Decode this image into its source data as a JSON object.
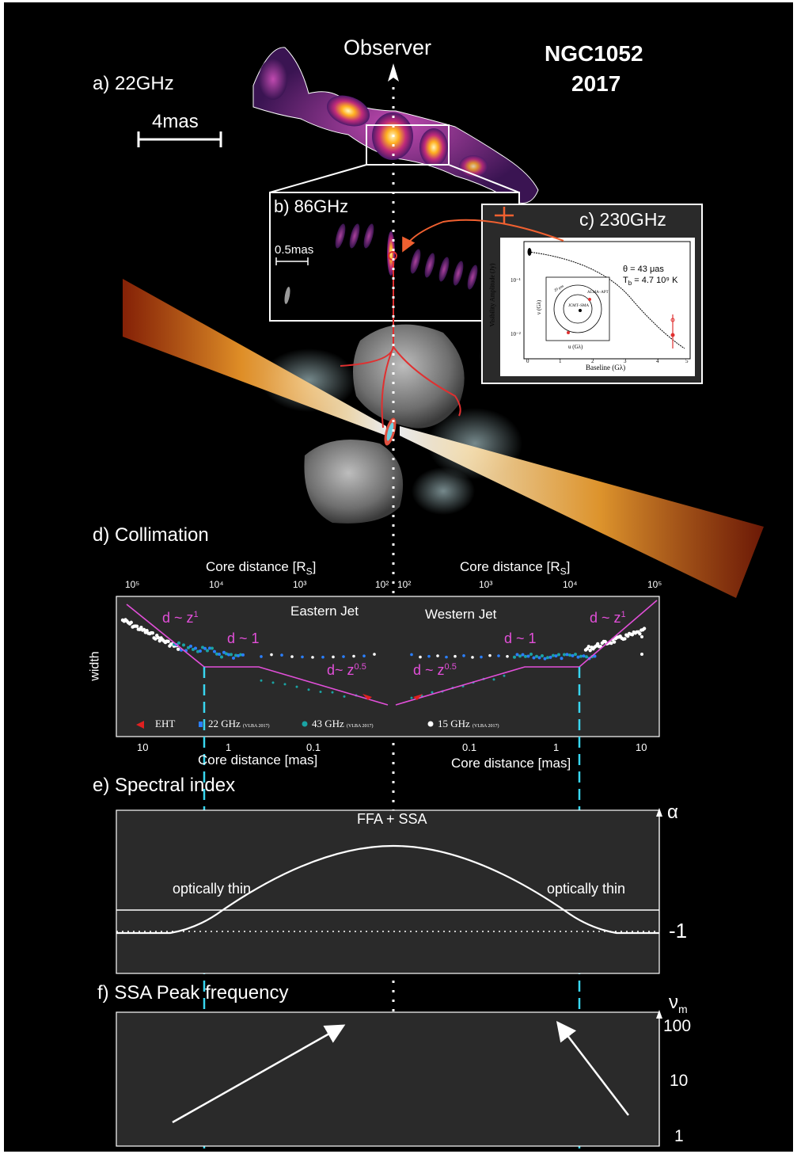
{
  "title": {
    "source": "NGC1052",
    "year": "2017"
  },
  "observer": "Observer",
  "panel_a": {
    "label": "a) 22GHz",
    "scale": "4mas"
  },
  "panel_b": {
    "label": "b) 86GHz",
    "scale": "0.5mas"
  },
  "panel_c": {
    "label": "c) 230GHz",
    "theta": "θ  = 43 μas",
    "tb": "T",
    "tb_sub": "b",
    "tb_val": " = 4.7 10⁹ K",
    "xlabel": "Baseline (Gλ)",
    "ylabel": "Visibility Amplitude (Jy)",
    "inset_x": "u (Gλ)",
    "inset_y": "v (Gλ)",
    "stations": [
      "ALMA–APT",
      "JCMT–SMA"
    ],
    "ring_label": "20 μas",
    "tick_y": [
      "10⁻¹",
      "10⁻²"
    ],
    "tick_x": [
      "0",
      "1",
      "2",
      "3",
      "4",
      "5"
    ]
  },
  "panel_d": {
    "label": "d) Collimation",
    "top_axis_left": "Core distance [R",
    "top_axis_right": "Core distance [R",
    "top_axis_sub": "S",
    "top_axis_close": "]",
    "top_ticks_left": [
      "10⁵",
      "10⁴",
      "10³",
      "10²"
    ],
    "top_ticks_right": [
      "10²",
      "10³",
      "10⁴",
      "10⁵"
    ],
    "bottom_axis_left": "Core distance [mas]",
    "bottom_axis_right": "Core distance [mas]",
    "bottom_ticks_left": [
      "10",
      "1",
      "0.1"
    ],
    "bottom_ticks_right": [
      "0.1",
      "1",
      "10"
    ],
    "ylabel": "width",
    "eastern": "Eastern Jet",
    "western": "Western Jet",
    "fits": {
      "outer": "d ~ z",
      "outer_exp": "1",
      "middle": "d ~ 1",
      "inner_left": "d~ z",
      "inner_right": "d ~ z",
      "inner_exp": "0.5"
    },
    "legend": [
      {
        "name": "EHT",
        "color": "#e02020"
      },
      {
        "name": "22 GHz",
        "note": "(VLBA 2017)",
        "color": "#2a7fff"
      },
      {
        "name": "43 GHz",
        "note": "(VLBA 2017)",
        "color": "#1aa3a3"
      },
      {
        "name": "15 GHz",
        "note": "(VLBA 2017)",
        "color": "#ffffff"
      }
    ]
  },
  "panel_e": {
    "label": "e) Spectral index",
    "center": "FFA + SSA",
    "left": "optically thin",
    "right": "optically thin",
    "axis": "α",
    "level": "-1"
  },
  "panel_f": {
    "label": "f) SSA Peak frequency",
    "axis": "ν",
    "axis_sub": "m",
    "ticks": [
      "100",
      "10",
      "1"
    ]
  },
  "colors": {
    "bg": "#000000",
    "panel": "#2a2a2a",
    "pink": "#e24fd9",
    "cyan": "#38d6f0",
    "red": "#e03030",
    "orange": "#ff7a3a"
  }
}
